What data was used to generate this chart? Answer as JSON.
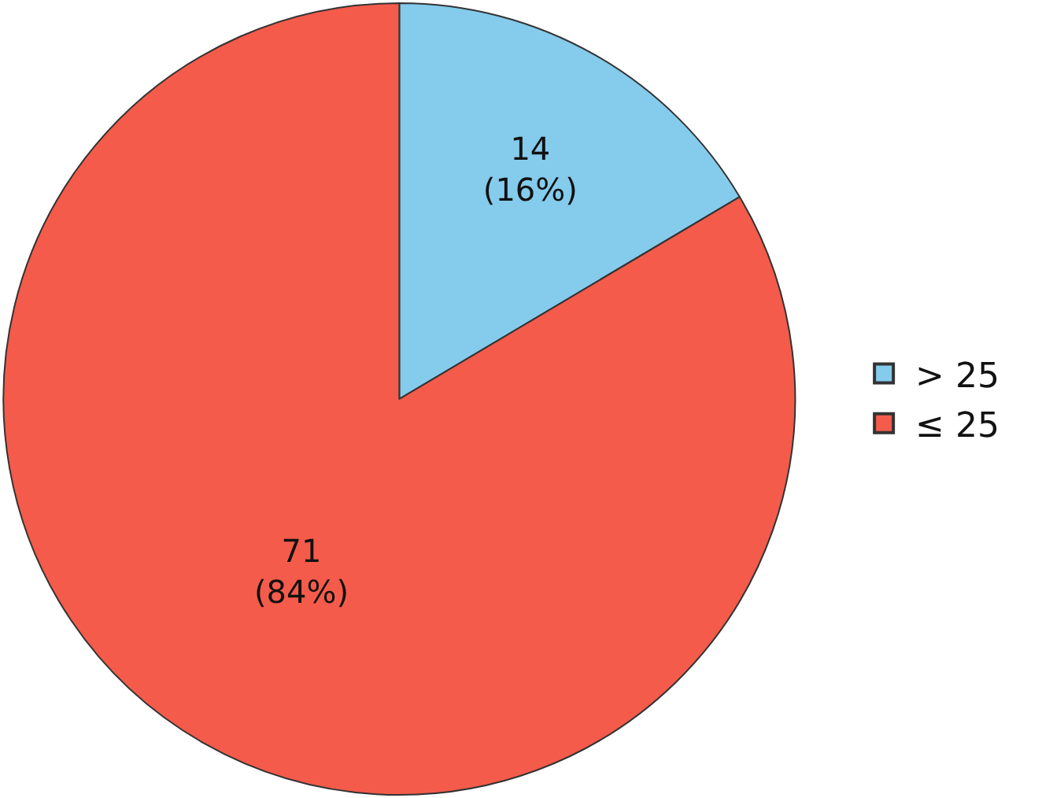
{
  "chart_data": {
    "type": "pie",
    "categories": [
      "> 25",
      "≤ 25"
    ],
    "values": [
      14,
      71
    ],
    "colors": [
      "#84cbec",
      "#f45b4b"
    ],
    "value_labels": [
      "14\n(16%)",
      "71\n(84%)"
    ],
    "legend": "right"
  }
}
